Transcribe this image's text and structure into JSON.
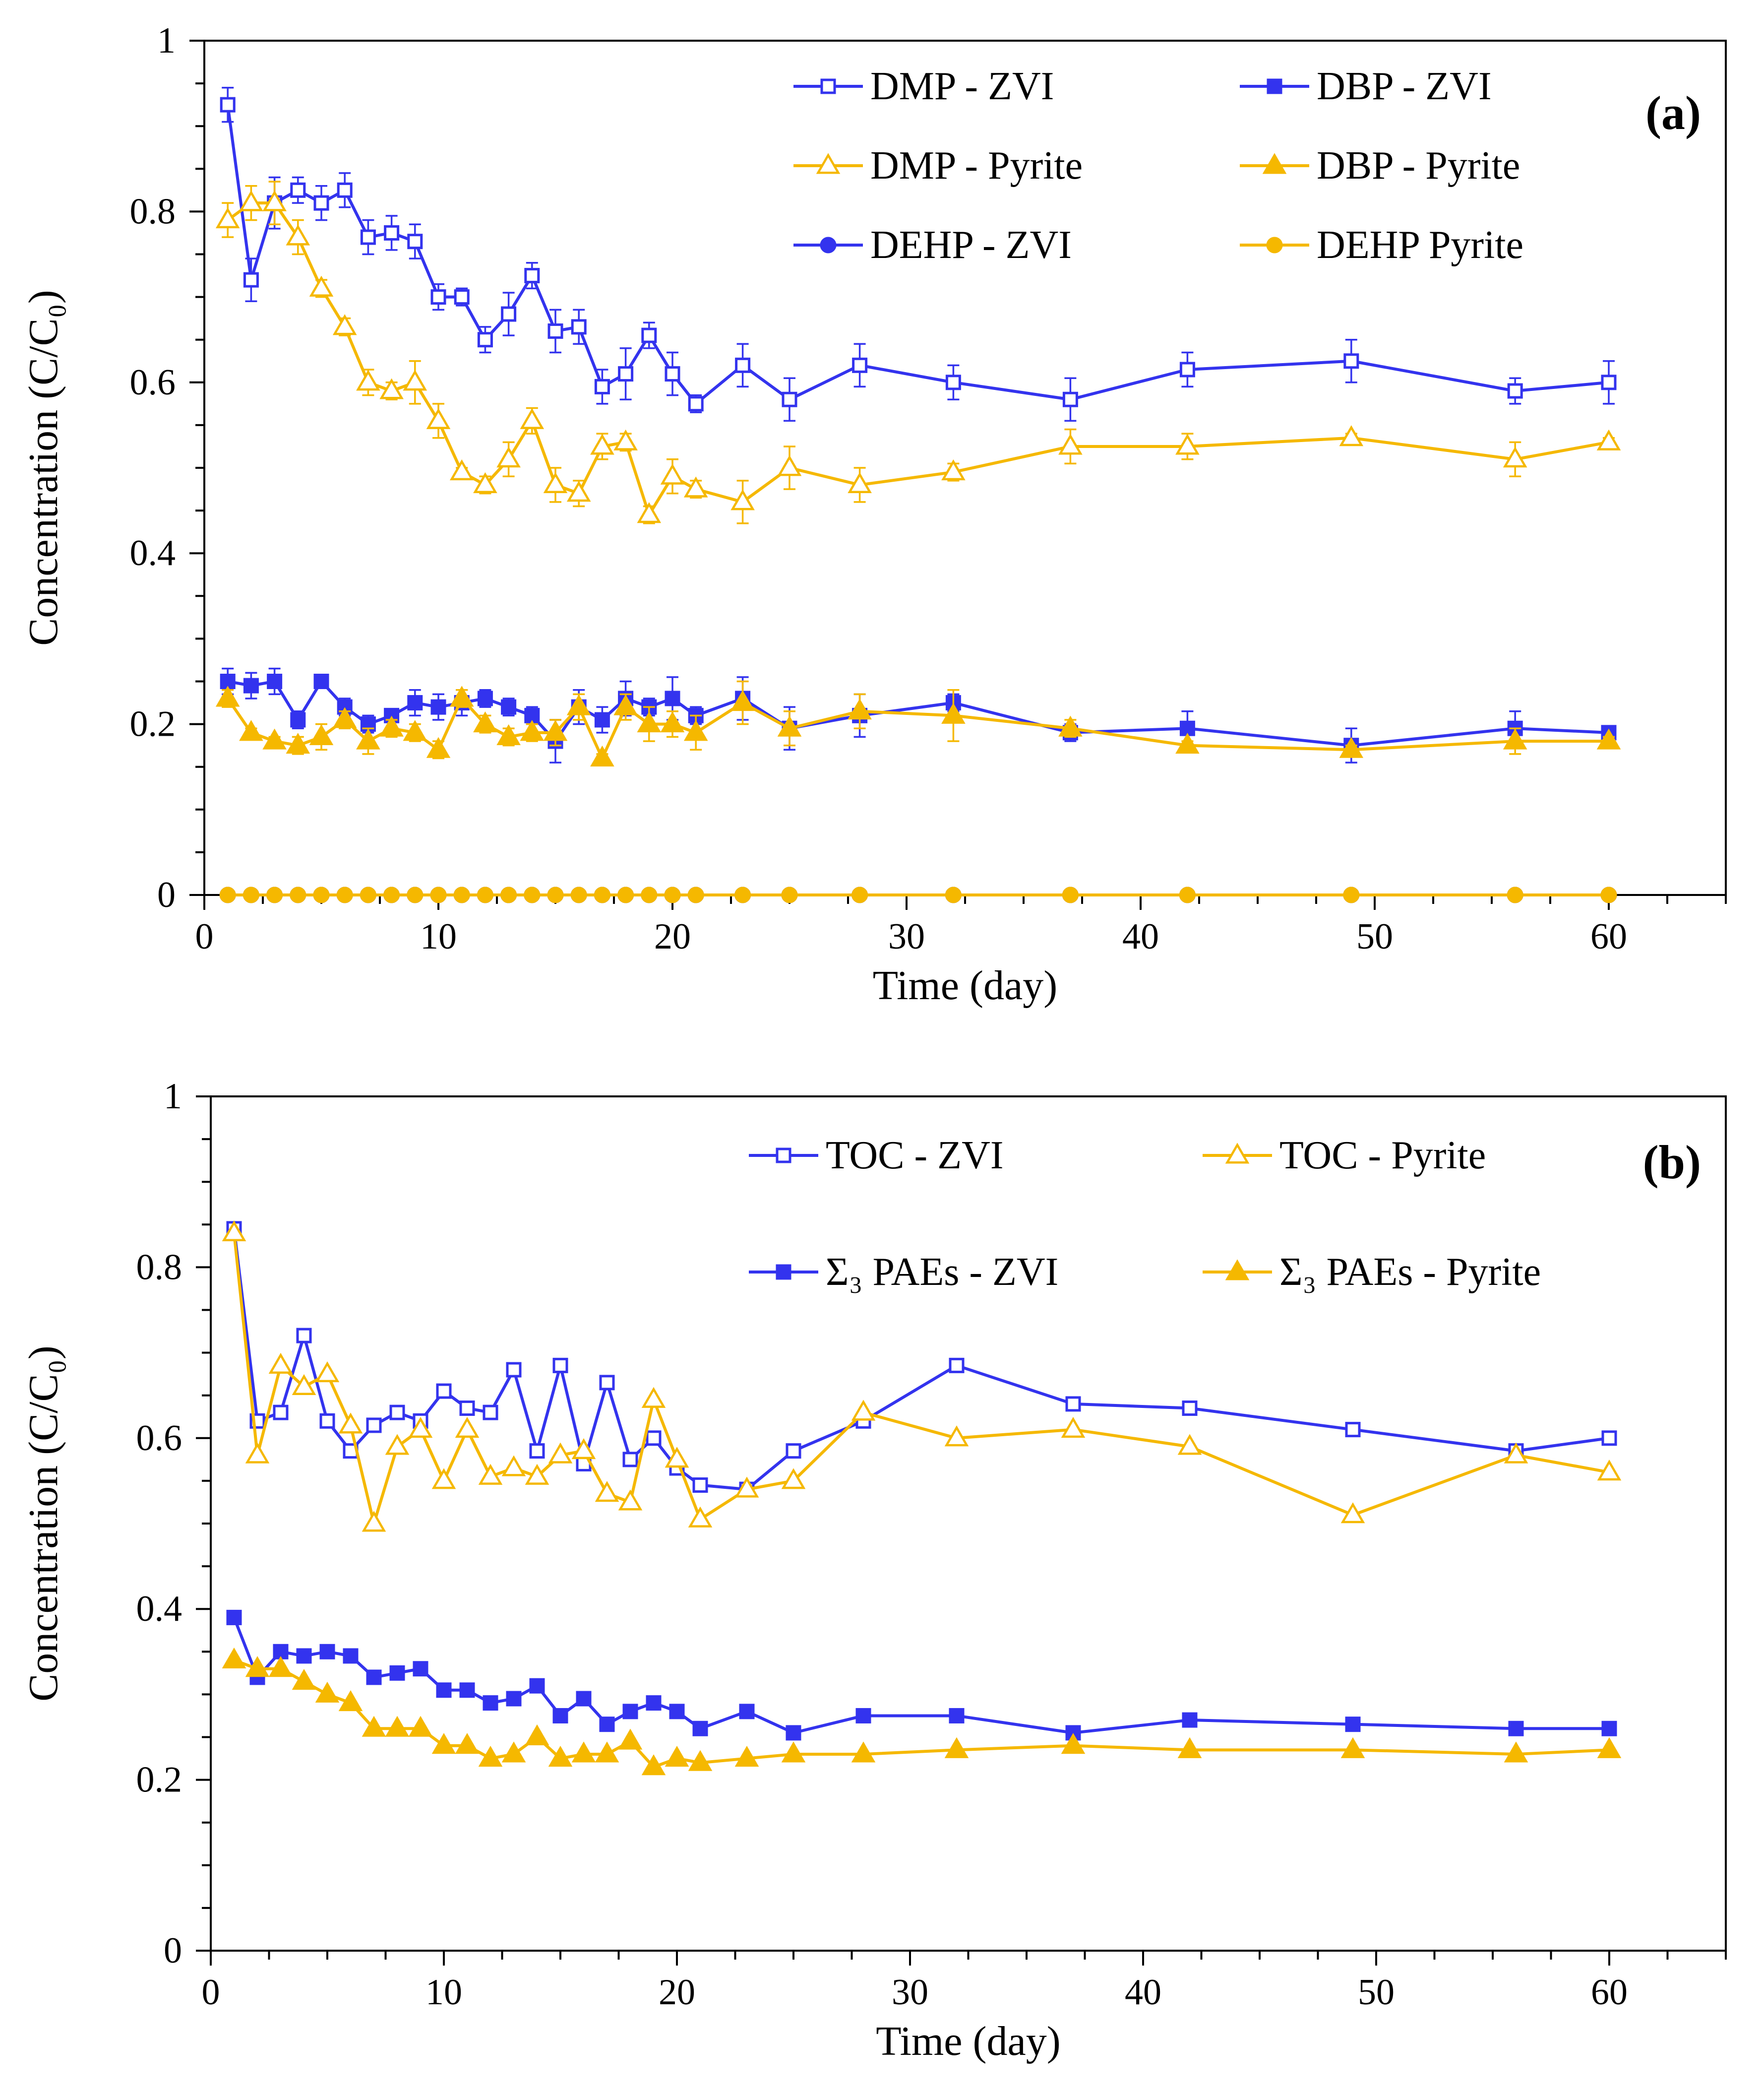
{
  "colors": {
    "zvi": "#3333ee",
    "pyrite": "#f5b800"
  },
  "chart_data": [
    {
      "type": "line",
      "panel_label": "(a)",
      "xlabel": "Time (day)",
      "ylabel": "Concentration (C/C₀)",
      "xlim": [
        0,
        65
      ],
      "ylim": [
        0,
        1
      ],
      "xticks": [
        "0",
        "10",
        "20",
        "30",
        "40",
        "50",
        "60"
      ],
      "yticks": [
        "0",
        "0.2",
        "0.4",
        "0.6",
        "0.8",
        "1"
      ],
      "series": [
        {
          "name": "DMP - ZVI",
          "color": "zvi",
          "marker": "square-open",
          "x": [
            1,
            2,
            3,
            4,
            5,
            6,
            7,
            8,
            9,
            10,
            11,
            12,
            13,
            14,
            15,
            16,
            17,
            18,
            19,
            20,
            21,
            23,
            25,
            28,
            32,
            37,
            42,
            49,
            56,
            60
          ],
          "y": [
            0.925,
            0.72,
            0.81,
            0.825,
            0.81,
            0.825,
            0.77,
            0.775,
            0.765,
            0.7,
            0.7,
            0.65,
            0.68,
            0.725,
            0.66,
            0.665,
            0.595,
            0.61,
            0.655,
            0.61,
            0.575,
            0.62,
            0.58,
            0.62,
            0.6,
            0.58,
            0.615,
            0.625,
            0.59,
            0.6
          ],
          "err": [
            0.02,
            0.025,
            0.03,
            0.015,
            0.02,
            0.02,
            0.02,
            0.02,
            0.02,
            0.015,
            0.01,
            0.015,
            0.025,
            0.015,
            0.025,
            0.02,
            0.02,
            0.03,
            0.015,
            0.025,
            0.01,
            0.025,
            0.025,
            0.025,
            0.02,
            0.025,
            0.02,
            0.025,
            0.015,
            0.025
          ]
        },
        {
          "name": "DBP - ZVI",
          "color": "zvi",
          "marker": "square-filled",
          "x": [
            1,
            2,
            3,
            4,
            5,
            6,
            7,
            8,
            9,
            10,
            11,
            12,
            13,
            14,
            15,
            16,
            17,
            18,
            19,
            20,
            21,
            23,
            25,
            28,
            32,
            37,
            42,
            49,
            56,
            60
          ],
          "y": [
            0.25,
            0.245,
            0.25,
            0.205,
            0.25,
            0.22,
            0.2,
            0.21,
            0.225,
            0.22,
            0.225,
            0.23,
            0.22,
            0.21,
            0.18,
            0.22,
            0.205,
            0.23,
            0.22,
            0.23,
            0.21,
            0.23,
            0.195,
            0.21,
            0.225,
            0.19,
            0.195,
            0.175,
            0.195,
            0.19
          ],
          "err": [
            0.015,
            0.015,
            0.015,
            0.01,
            0.005,
            0.01,
            0.01,
            0.005,
            0.015,
            0.015,
            0.015,
            0.01,
            0.01,
            0.01,
            0.025,
            0.02,
            0.015,
            0.02,
            0.01,
            0.025,
            0.01,
            0.025,
            0.025,
            0.025,
            0.01,
            0.01,
            0.02,
            0.02,
            0.02,
            0.005
          ]
        },
        {
          "name": "DEHP - ZVI",
          "color": "zvi",
          "marker": "circle-filled",
          "x": [
            1,
            2,
            3,
            4,
            5,
            6,
            7,
            8,
            9,
            10,
            11,
            12,
            13,
            14,
            15,
            16,
            17,
            18,
            19,
            20,
            21,
            23,
            25,
            28,
            32,
            37,
            42,
            49,
            56,
            60
          ],
          "y": [
            0,
            0,
            0,
            0,
            0,
            0,
            0,
            0,
            0,
            0,
            0,
            0,
            0,
            0,
            0,
            0,
            0,
            0,
            0,
            0,
            0,
            0,
            0,
            0,
            0,
            0,
            0,
            0,
            0,
            0
          ]
        },
        {
          "name": "DMP - Pyrite",
          "color": "pyrite",
          "marker": "triangle-open",
          "x": [
            1,
            2,
            3,
            4,
            5,
            6,
            7,
            8,
            9,
            10,
            11,
            12,
            13,
            14,
            15,
            16,
            17,
            18,
            19,
            20,
            21,
            23,
            25,
            28,
            32,
            37,
            42,
            49,
            56,
            60
          ],
          "y": [
            0.79,
            0.81,
            0.81,
            0.77,
            0.71,
            0.665,
            0.6,
            0.59,
            0.6,
            0.555,
            0.495,
            0.48,
            0.51,
            0.555,
            0.48,
            0.47,
            0.525,
            0.53,
            0.445,
            0.49,
            0.475,
            0.46,
            0.5,
            0.48,
            0.495,
            0.525,
            0.525,
            0.535,
            0.51,
            0.53
          ],
          "err": [
            0.02,
            0.02,
            0.025,
            0.02,
            0.01,
            0.01,
            0.015,
            0.01,
            0.025,
            0.02,
            0.005,
            0.01,
            0.02,
            0.015,
            0.02,
            0.015,
            0.015,
            0.01,
            0.01,
            0.02,
            0.01,
            0.025,
            0.025,
            0.02,
            0.01,
            0.02,
            0.015,
            0.005,
            0.02,
            0.005
          ]
        },
        {
          "name": "DBP - Pyrite",
          "color": "pyrite",
          "marker": "triangle-filled",
          "x": [
            1,
            2,
            3,
            4,
            5,
            6,
            7,
            8,
            9,
            10,
            11,
            12,
            13,
            14,
            15,
            16,
            17,
            18,
            19,
            20,
            21,
            23,
            25,
            28,
            32,
            37,
            42,
            49,
            56,
            60
          ],
          "y": [
            0.23,
            0.19,
            0.18,
            0.175,
            0.185,
            0.205,
            0.18,
            0.195,
            0.19,
            0.17,
            0.23,
            0.2,
            0.185,
            0.19,
            0.19,
            0.22,
            0.16,
            0.22,
            0.2,
            0.2,
            0.19,
            0.225,
            0.195,
            0.215,
            0.21,
            0.195,
            0.175,
            0.17,
            0.18,
            0.18
          ],
          "err": [
            0.01,
            0.005,
            0.005,
            0.01,
            0.015,
            0.01,
            0.015,
            0.01,
            0.01,
            0.01,
            0.01,
            0.01,
            0.01,
            0.01,
            0.015,
            0.015,
            0.005,
            0.015,
            0.02,
            0.015,
            0.02,
            0.025,
            0.02,
            0.02,
            0.03,
            0.01,
            0.005,
            0.005,
            0.015,
            0.005
          ]
        },
        {
          "name": "DEHP  Pyrite",
          "color": "pyrite",
          "marker": "circle-filled",
          "x": [
            1,
            2,
            3,
            4,
            5,
            6,
            7,
            8,
            9,
            10,
            11,
            12,
            13,
            14,
            15,
            16,
            17,
            18,
            19,
            20,
            21,
            23,
            25,
            28,
            32,
            37,
            42,
            49,
            56,
            60
          ],
          "y": [
            0,
            0,
            0,
            0,
            0,
            0,
            0,
            0,
            0,
            0,
            0,
            0,
            0,
            0,
            0,
            0,
            0,
            0,
            0,
            0,
            0,
            0,
            0,
            0,
            0,
            0,
            0,
            0,
            0,
            0
          ]
        }
      ]
    },
    {
      "type": "line",
      "panel_label": "(b)",
      "xlabel": "Time (day)",
      "ylabel": "Concentration (C/C₀)",
      "xlim": [
        0,
        65
      ],
      "ylim": [
        0,
        1
      ],
      "xticks": [
        "0",
        "10",
        "20",
        "30",
        "40",
        "50",
        "60"
      ],
      "yticks": [
        "0",
        "0.2",
        "0.4",
        "0.6",
        "0.8",
        "1"
      ],
      "series": [
        {
          "name": "TOC - ZVI",
          "color": "zvi",
          "marker": "square-open",
          "x": [
            1,
            2,
            3,
            4,
            5,
            6,
            7,
            8,
            9,
            10,
            11,
            12,
            13,
            14,
            15,
            16,
            17,
            18,
            19,
            20,
            21,
            23,
            25,
            28,
            32,
            37,
            42,
            49,
            56,
            60
          ],
          "y": [
            0.845,
            0.62,
            0.63,
            0.72,
            0.62,
            0.585,
            0.615,
            0.63,
            0.62,
            0.655,
            0.635,
            0.63,
            0.68,
            0.585,
            0.685,
            0.57,
            0.665,
            0.575,
            0.6,
            0.565,
            0.545,
            0.54,
            0.585,
            0.62,
            0.685,
            0.64,
            0.635,
            0.61,
            0.585,
            0.6
          ]
        },
        {
          "name": "Σ₃ PAEs - ZVI",
          "color": "zvi",
          "marker": "square-filled",
          "x": [
            1,
            2,
            3,
            4,
            5,
            6,
            7,
            8,
            9,
            10,
            11,
            12,
            13,
            14,
            15,
            16,
            17,
            18,
            19,
            20,
            21,
            23,
            25,
            28,
            32,
            37,
            42,
            49,
            56,
            60
          ],
          "y": [
            0.39,
            0.32,
            0.35,
            0.345,
            0.35,
            0.345,
            0.32,
            0.325,
            0.33,
            0.305,
            0.305,
            0.29,
            0.295,
            0.31,
            0.275,
            0.295,
            0.265,
            0.28,
            0.29,
            0.28,
            0.26,
            0.28,
            0.255,
            0.275,
            0.275,
            0.255,
            0.27,
            0.265,
            0.26,
            0.26
          ]
        },
        {
          "name": "TOC - Pyrite",
          "color": "pyrite",
          "marker": "triangle-open",
          "x": [
            1,
            2,
            3,
            4,
            5,
            6,
            7,
            8,
            9,
            10,
            11,
            12,
            13,
            14,
            15,
            16,
            17,
            18,
            19,
            20,
            21,
            23,
            25,
            28,
            32,
            37,
            42,
            49,
            56,
            60
          ],
          "y": [
            0.84,
            0.58,
            0.685,
            0.66,
            0.675,
            0.615,
            0.5,
            0.59,
            0.61,
            0.55,
            0.61,
            0.555,
            0.565,
            0.555,
            0.58,
            0.585,
            0.535,
            0.525,
            0.645,
            0.575,
            0.505,
            0.54,
            0.55,
            0.63,
            0.6,
            0.61,
            0.59,
            0.51,
            0.58,
            0.56
          ]
        },
        {
          "name": "Σ₃ PAEs - Pyrite",
          "color": "pyrite",
          "marker": "triangle-filled",
          "x": [
            1,
            2,
            3,
            4,
            5,
            6,
            7,
            8,
            9,
            10,
            11,
            12,
            13,
            14,
            15,
            16,
            17,
            18,
            19,
            20,
            21,
            23,
            25,
            28,
            32,
            37,
            42,
            49,
            56,
            60
          ],
          "y": [
            0.34,
            0.33,
            0.33,
            0.315,
            0.3,
            0.29,
            0.26,
            0.26,
            0.26,
            0.24,
            0.24,
            0.225,
            0.23,
            0.25,
            0.225,
            0.23,
            0.23,
            0.245,
            0.215,
            0.225,
            0.22,
            0.225,
            0.23,
            0.23,
            0.235,
            0.24,
            0.235,
            0.235,
            0.23,
            0.235
          ]
        }
      ]
    }
  ]
}
